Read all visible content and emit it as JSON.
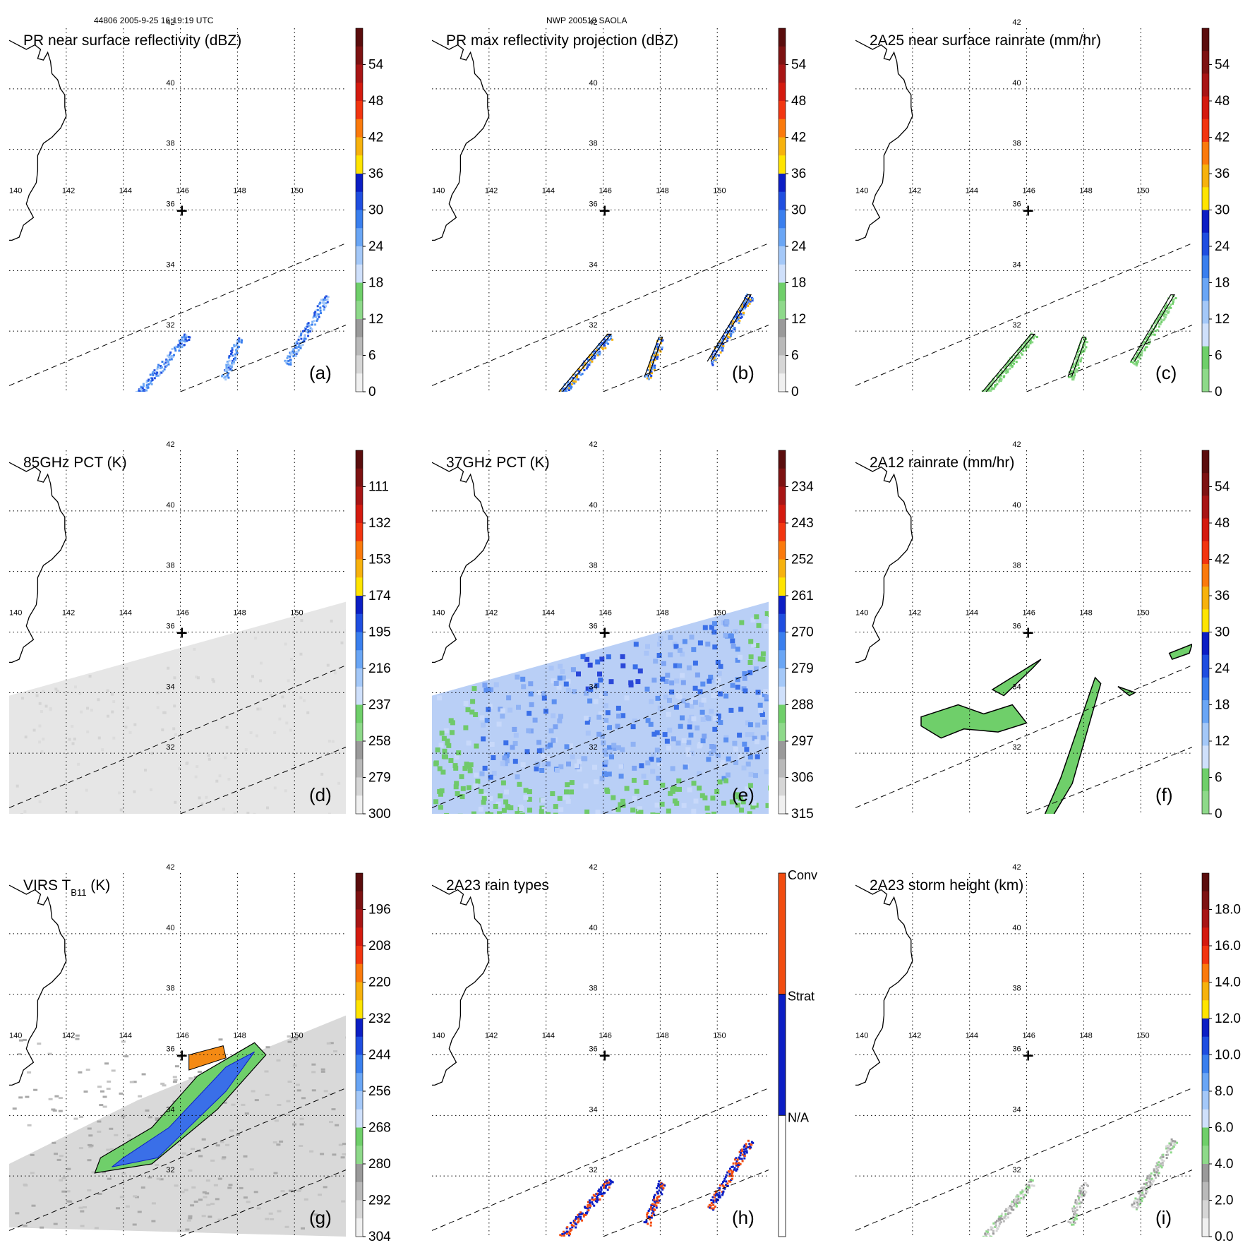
{
  "header": {
    "orbit_label": "44806 2005-9-25 16:19:19 UTC",
    "storm_label": "NWP 200518 SAOLA"
  },
  "map": {
    "lon_labels": [
      "140",
      "142",
      "144",
      "146",
      "148",
      "150"
    ],
    "lat_labels": [
      "42",
      "40",
      "38",
      "36",
      "34",
      "32"
    ],
    "center_marker": "+"
  },
  "colors": {
    "land_outline": "#000000",
    "grid": "#000000",
    "swath_edge": "#000000"
  },
  "chart_data": [
    {
      "id": "a",
      "type": "heatmap",
      "title": "PR near surface reflectivity (dBZ)",
      "panel_label": "(a)",
      "colorbar_ticks": [
        "54",
        "48",
        "42",
        "36",
        "30",
        "24",
        "18",
        "12",
        "6",
        "0"
      ],
      "colorbar_colors": [
        "#5a0d0d",
        "#7d1212",
        "#a81515",
        "#d41a0f",
        "#f23510",
        "#fb7a0c",
        "#f7b20d",
        "#ffe400",
        "#0c1ec4",
        "#1f4ee0",
        "#3a7fee",
        "#6aa6f5",
        "#a4c8f8",
        "#cfe0fb",
        "#6fcf6a",
        "#8ed98a",
        "#9a9a9a",
        "#b9b9b9",
        "#d6d6d6",
        "#f0f0f0"
      ],
      "field": "pr_surface"
    },
    {
      "id": "b",
      "type": "heatmap",
      "title": "PR max reflectivity projection (dBZ)",
      "panel_label": "(b)",
      "colorbar_ticks": [
        "54",
        "48",
        "42",
        "36",
        "30",
        "24",
        "18",
        "12",
        "6",
        "0"
      ],
      "colorbar_colors": [
        "#5a0d0d",
        "#7d1212",
        "#a81515",
        "#d41a0f",
        "#f23510",
        "#fb7a0c",
        "#f7b20d",
        "#ffe400",
        "#0c1ec4",
        "#1f4ee0",
        "#3a7fee",
        "#6aa6f5",
        "#a4c8f8",
        "#cfe0fb",
        "#6fcf6a",
        "#8ed98a",
        "#9a9a9a",
        "#b9b9b9",
        "#d6d6d6",
        "#f0f0f0"
      ],
      "field": "pr_max"
    },
    {
      "id": "c",
      "type": "heatmap",
      "title": "2A25 near surface rainrate (mm/hr)",
      "panel_label": "(c)",
      "colorbar_ticks": [
        "54",
        "48",
        "42",
        "36",
        "30",
        "24",
        "18",
        "12",
        "6",
        "0"
      ],
      "colorbar_colors": [
        "#5a0d0d",
        "#7d1212",
        "#a81515",
        "#d41a0f",
        "#f23510",
        "#fb7a0c",
        "#f7b20d",
        "#ffe400",
        "#0c1ec4",
        "#1f4ee0",
        "#3a7fee",
        "#6aa6f5",
        "#a4c8f8",
        "#cfe0fb",
        "#6fcf6a",
        "#8ed98a"
      ],
      "field": "rain_2a25"
    },
    {
      "id": "d",
      "type": "heatmap",
      "title": "85GHz PCT (K)",
      "panel_label": "(d)",
      "colorbar_ticks": [
        "111",
        "132",
        "153",
        "174",
        "195",
        "216",
        "237",
        "258",
        "279",
        "300"
      ],
      "colorbar_colors": [
        "#5a0d0d",
        "#7d1212",
        "#a81515",
        "#d41a0f",
        "#f23510",
        "#fb7a0c",
        "#f7b20d",
        "#ffe400",
        "#0c1ec4",
        "#1f4ee0",
        "#3a7fee",
        "#6aa6f5",
        "#a4c8f8",
        "#cfe0fb",
        "#6fcf6a",
        "#8ed98a",
        "#9a9a9a",
        "#b9b9b9",
        "#d6d6d6",
        "#f0f0f0"
      ],
      "field": "pct85"
    },
    {
      "id": "e",
      "type": "heatmap",
      "title": "37GHz PCT (K)",
      "panel_label": "(e)",
      "colorbar_ticks": [
        "234",
        "243",
        "252",
        "261",
        "270",
        "279",
        "288",
        "297",
        "306",
        "315"
      ],
      "colorbar_colors": [
        "#5a0d0d",
        "#7d1212",
        "#a81515",
        "#d41a0f",
        "#f23510",
        "#fb7a0c",
        "#f7b20d",
        "#ffe400",
        "#0c1ec4",
        "#1f4ee0",
        "#3a7fee",
        "#6aa6f5",
        "#a4c8f8",
        "#cfe0fb",
        "#6fcf6a",
        "#8ed98a",
        "#9a9a9a",
        "#b9b9b9",
        "#d6d6d6",
        "#f0f0f0"
      ],
      "field": "pct37"
    },
    {
      "id": "f",
      "type": "heatmap",
      "title": "2A12 rainrate (mm/hr)",
      "panel_label": "(f)",
      "colorbar_ticks": [
        "54",
        "48",
        "42",
        "36",
        "30",
        "24",
        "18",
        "12",
        "6",
        "0"
      ],
      "colorbar_colors": [
        "#5a0d0d",
        "#7d1212",
        "#a81515",
        "#d41a0f",
        "#f23510",
        "#fb7a0c",
        "#f7b20d",
        "#ffe400",
        "#0c1ec4",
        "#1f4ee0",
        "#3a7fee",
        "#6aa6f5",
        "#a4c8f8",
        "#cfe0fb",
        "#6fcf6a",
        "#8ed98a"
      ],
      "field": "rain_2a12"
    },
    {
      "id": "g",
      "type": "heatmap",
      "title": "VIRS T",
      "title_sub": "B11",
      "title_suffix": " (K)",
      "panel_label": "(g)",
      "colorbar_ticks": [
        "196",
        "208",
        "220",
        "232",
        "244",
        "256",
        "268",
        "280",
        "292",
        "304"
      ],
      "colorbar_colors": [
        "#5a0d0d",
        "#7d1212",
        "#a81515",
        "#d41a0f",
        "#f23510",
        "#fb7a0c",
        "#f7b20d",
        "#ffe400",
        "#0c1ec4",
        "#1f4ee0",
        "#3a7fee",
        "#6aa6f5",
        "#a4c8f8",
        "#cfe0fb",
        "#6fcf6a",
        "#8ed98a",
        "#9a9a9a",
        "#b9b9b9",
        "#d6d6d6",
        "#f0f0f0"
      ],
      "field": "virs"
    },
    {
      "id": "h",
      "type": "heatmap",
      "title": "2A23 rain types",
      "panel_label": "(h)",
      "categorical": true,
      "category_labels": [
        "Conv",
        "Strat",
        "N/A"
      ],
      "category_colors": [
        "#f24c10",
        "#0c1ec4",
        "#ffffff"
      ],
      "field": "rain_type"
    },
    {
      "id": "i",
      "type": "heatmap",
      "title": "2A23 storm height (km)",
      "panel_label": "(i)",
      "colorbar_ticks": [
        "18.0",
        "16.0",
        "14.0",
        "12.0",
        "10.0",
        "8.0",
        "6.0",
        "4.0",
        "2.0",
        "0.0"
      ],
      "colorbar_colors": [
        "#5a0d0d",
        "#7d1212",
        "#a81515",
        "#d41a0f",
        "#f23510",
        "#fb7a0c",
        "#f7b20d",
        "#ffe400",
        "#0c1ec4",
        "#1f4ee0",
        "#3a7fee",
        "#6aa6f5",
        "#a4c8f8",
        "#cfe0fb",
        "#6fcf6a",
        "#8ed98a",
        "#9a9a9a",
        "#b9b9b9",
        "#d6d6d6",
        "#f0f0f0"
      ],
      "field": "storm_height"
    }
  ]
}
